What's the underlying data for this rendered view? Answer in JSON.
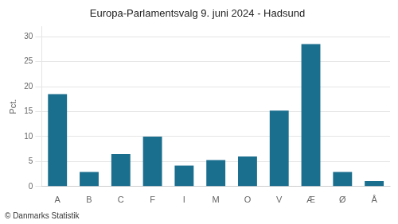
{
  "chart_data": {
    "type": "bar",
    "title": "Europa-Parlamentsvalg 9. juni 2024 - Hadsund",
    "categories": [
      "A",
      "B",
      "C",
      "F",
      "I",
      "M",
      "O",
      "V",
      "Æ",
      "Ø",
      "Å"
    ],
    "values": [
      18.5,
      2.9,
      6.5,
      10.0,
      4.2,
      5.3,
      6.0,
      15.2,
      28.5,
      2.9,
      1.1
    ],
    "color": "#1a6e8e",
    "ylabel": "Pct.",
    "footer": "© Danmarks Statistik",
    "ylim": [
      0,
      32
    ],
    "yticks": [
      0,
      5,
      10,
      15,
      20,
      25,
      30
    ],
    "grid": true
  }
}
